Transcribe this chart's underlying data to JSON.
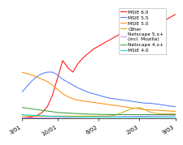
{
  "series": {
    "MSIE 6.0": {
      "color": "#ff0000",
      "data": [
        0.2,
        0.5,
        1.0,
        2.0,
        4.0,
        8.0,
        16.0,
        28.0,
        40.0,
        35.0,
        32.0,
        38.0,
        42.0,
        45.0,
        48.0,
        50.0,
        52.0,
        54.0,
        56.0,
        58.0,
        60.0,
        62.0,
        64.0,
        68.0,
        72.0,
        70.0,
        64.0,
        66.0,
        68.0,
        70.0,
        72.0
      ]
    },
    "MSIE 5.5": {
      "color": "#4477ff",
      "data": [
        18.0,
        22.0,
        26.0,
        29.0,
        31.0,
        32.0,
        32.0,
        30.0,
        27.0,
        25.0,
        23.0,
        21.0,
        19.5,
        18.0,
        17.0,
        16.0,
        15.0,
        14.0,
        13.5,
        13.0,
        12.5,
        12.0,
        11.5,
        11.0,
        10.5,
        10.5,
        10.0,
        9.5,
        9.0,
        8.5,
        8.0
      ]
    },
    "MSIE 5.0": {
      "color": "#ff8800",
      "data": [
        32.0,
        31.0,
        30.0,
        28.5,
        27.0,
        25.5,
        23.0,
        20.0,
        17.0,
        15.0,
        13.5,
        12.5,
        12.0,
        11.5,
        11.0,
        10.5,
        10.0,
        9.5,
        9.0,
        8.5,
        8.0,
        7.5,
        7.0,
        6.5,
        6.0,
        5.8,
        5.6,
        5.4,
        5.2,
        5.0,
        4.8
      ]
    },
    "Other": {
      "color": "#ccaa00",
      "data": [
        1.5,
        1.5,
        1.5,
        1.5,
        1.5,
        1.5,
        1.5,
        1.5,
        1.5,
        1.5,
        1.5,
        1.5,
        1.5,
        1.5,
        1.5,
        1.5,
        1.5,
        1.5,
        2.0,
        3.0,
        4.5,
        6.0,
        7.0,
        7.5,
        6.0,
        4.5,
        3.5,
        3.0,
        3.0,
        3.0,
        3.0
      ]
    },
    "Netscape 5.x+\n(incl. Mozilla)": {
      "color": "#cc88ff",
      "data": [
        0.3,
        0.3,
        0.3,
        0.4,
        0.4,
        0.4,
        0.5,
        0.5,
        0.6,
        0.6,
        0.7,
        0.7,
        0.8,
        0.8,
        0.9,
        0.9,
        1.0,
        1.0,
        1.1,
        1.1,
        1.2,
        1.2,
        1.3,
        1.4,
        1.5,
        1.5,
        1.6,
        1.6,
        1.7,
        1.7,
        1.8
      ]
    },
    "Netscape 4.x+": {
      "color": "#339933",
      "data": [
        7.5,
        7.0,
        6.5,
        6.0,
        5.5,
        5.0,
        4.5,
        4.0,
        3.8,
        3.6,
        3.4,
        3.2,
        3.0,
        2.9,
        2.8,
        2.7,
        2.6,
        2.5,
        2.5,
        2.5,
        2.5,
        2.5,
        2.5,
        2.5,
        2.5,
        2.5,
        2.5,
        2.5,
        2.5,
        2.5,
        2.5
      ]
    },
    "MSIE 4.0": {
      "color": "#00cccc",
      "data": [
        2.5,
        2.3,
        2.1,
        1.9,
        1.7,
        1.5,
        1.3,
        1.2,
        1.1,
        1.0,
        0.9,
        0.9,
        0.8,
        0.8,
        0.8,
        0.8,
        0.8,
        0.8,
        0.8,
        0.8,
        0.8,
        0.8,
        0.8,
        0.8,
        0.8,
        0.8,
        0.8,
        0.8,
        0.8,
        0.8,
        0.8
      ]
    }
  },
  "xtick_positions": [
    0,
    7,
    15,
    23,
    30
  ],
  "xtick_labels": [
    "3/01",
    "10/01",
    "6/02",
    "2/03",
    "9/03"
  ],
  "ylim": [
    0,
    75
  ],
  "bg_color": "#ffffff",
  "legend_order": [
    "MSIE 6.0",
    "MSIE 5.5",
    "MSIE 5.0",
    "Other",
    "Netscape 5.x+\n(incl. Mozilla)",
    "Netscape 4.x+",
    "MSIE 4.0"
  ]
}
